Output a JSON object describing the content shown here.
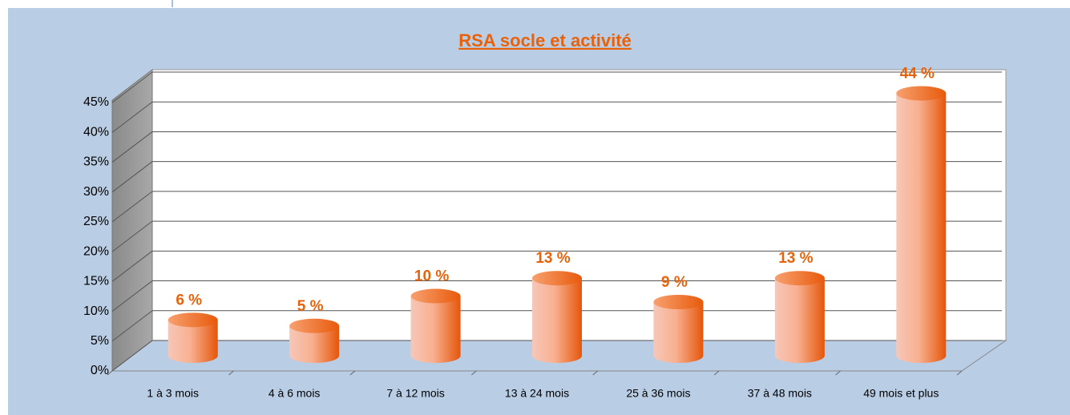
{
  "chart_data": {
    "type": "bar",
    "title": "RSA socle et activité",
    "categories": [
      "1 à 3 mois",
      "4 à 6 mois",
      "7 à 12 mois",
      "13 à 24 mois",
      "25 à 36 mois",
      "37 à 48 mois",
      "49 mois et plus"
    ],
    "values": [
      6,
      5,
      10,
      13,
      9,
      13,
      44
    ],
    "value_labels": [
      "6 %",
      "5 %",
      "10 %",
      "13 %",
      "9 %",
      "13 %",
      "44 %"
    ],
    "color": "#e8620c",
    "ylim": [
      0,
      45
    ],
    "yticks": [
      {
        "value": 0,
        "label": "0%"
      },
      {
        "value": 5,
        "label": "5%"
      },
      {
        "value": 10,
        "label": "10%"
      },
      {
        "value": 15,
        "label": "15%"
      },
      {
        "value": 20,
        "label": "20%"
      },
      {
        "value": 25,
        "label": "25%"
      },
      {
        "value": 30,
        "label": "30%"
      },
      {
        "value": 35,
        "label": "35%"
      },
      {
        "value": 40,
        "label": "40%"
      },
      {
        "value": 45,
        "label": "45%"
      }
    ],
    "grid": true
  }
}
